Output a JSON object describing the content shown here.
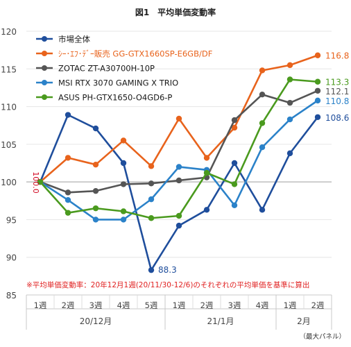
{
  "title": "図1　平均単価変動率",
  "note": "※平均単価変動率：20年12月1週(20/11/30-12/6)のそれぞれの平均単価を基準に算出",
  "footer": "（最大パネル）",
  "baseline_label": "100.0",
  "chart_data": {
    "type": "line",
    "title": "図1　平均単価変動率",
    "xlabel": "",
    "ylabel": "",
    "ylim": [
      85,
      120
    ],
    "yticks": [
      85,
      90,
      95,
      100,
      105,
      110,
      115,
      120
    ],
    "categories": [
      "1週",
      "2週",
      "3週",
      "4週",
      "5週",
      "1週",
      "2週",
      "3週",
      "4週",
      "1週",
      "2週"
    ],
    "groups": [
      {
        "label": "20/12月",
        "start": 0,
        "end": 4
      },
      {
        "label": "21/1月",
        "start": 5,
        "end": 8
      },
      {
        "label": "2月",
        "start": 9,
        "end": 10
      }
    ],
    "grid": true,
    "legend_position": "top-left",
    "series": [
      {
        "name": "市場全体",
        "color": "#1f4e9c",
        "values": [
          100.0,
          108.9,
          107.1,
          102.5,
          88.3,
          94.2,
          96.3,
          102.5,
          96.3,
          103.8,
          108.6
        ],
        "end_label": "108.6",
        "extra_labels": [
          {
            "index": 4,
            "text": "88.3"
          }
        ]
      },
      {
        "name": "ｼｰ･ｴﾌ･ﾃﾞｰ販売 GG-GTX1660SP-E6GB/DF",
        "color": "#e8631c",
        "values": [
          100.0,
          103.2,
          102.3,
          105.5,
          102.1,
          108.4,
          103.2,
          107.2,
          114.8,
          115.5,
          116.8
        ],
        "end_label": "116.8"
      },
      {
        "name": "ZOTAC ZT-A30700H-10P",
        "color": "#555555",
        "values": [
          100.0,
          98.6,
          98.8,
          99.7,
          99.8,
          100.2,
          100.6,
          108.2,
          111.6,
          110.5,
          112.1
        ],
        "end_label": "112.1"
      },
      {
        "name": "MSI RTX 3070 GAMING X TRIO",
        "color": "#2b82c9",
        "values": [
          100.0,
          97.6,
          95.0,
          95.0,
          97.7,
          102.0,
          101.6,
          96.9,
          104.6,
          108.3,
          110.8
        ],
        "end_label": "110.8"
      },
      {
        "name": "ASUS PH-GTX1650-O4GD6-P",
        "color": "#4a9a1e",
        "values": [
          100.0,
          95.9,
          96.5,
          96.1,
          95.2,
          95.5,
          101.2,
          99.7,
          107.8,
          113.6,
          113.3
        ],
        "end_label": "113.3"
      }
    ]
  }
}
